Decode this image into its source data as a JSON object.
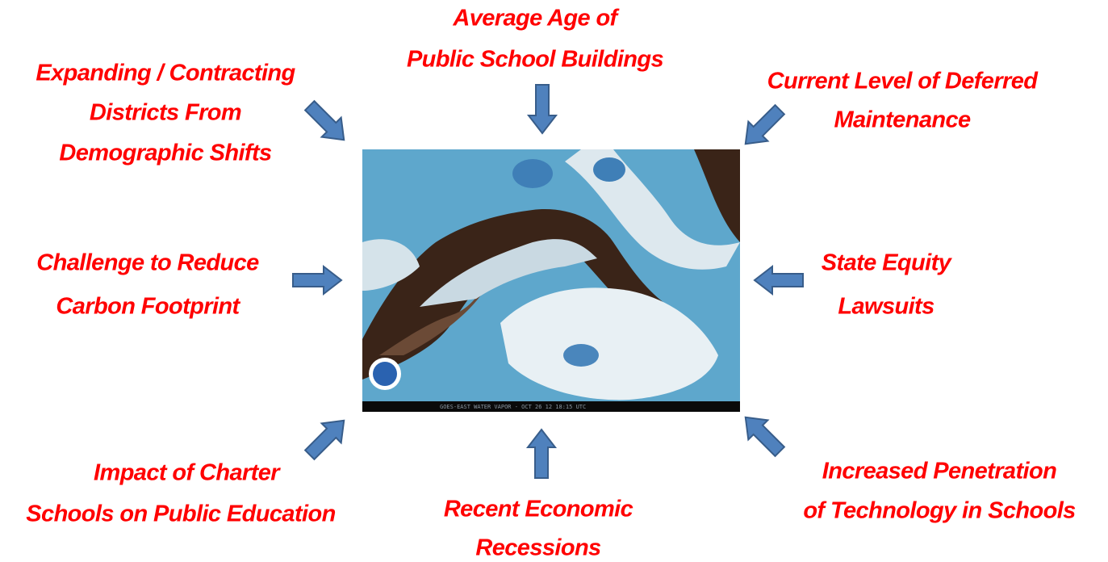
{
  "labels": [
    {
      "lines": [
        "Average Age of",
        "Public School Buildings"
      ]
    },
    {
      "lines": [
        "Expanding / Contracting",
        "Districts From",
        "Demographic Shifts"
      ]
    },
    {
      "lines": [
        "Current Level of Deferred",
        "Maintenance"
      ]
    },
    {
      "lines": [
        "Challenge to Reduce",
        "Carbon Footprint"
      ]
    },
    {
      "lines": [
        "State Equity",
        "Lawsuits"
      ]
    },
    {
      "lines": [
        "Impact of Charter",
        "Schools on Public Education"
      ]
    },
    {
      "lines": [
        "Recent Economic",
        "Recessions"
      ]
    },
    {
      "lines": [
        "Increased Penetration",
        "of Technology in Schools"
      ]
    }
  ],
  "image": {
    "caption": "GOES-EAST WATER VAPOR - OCT 26 12 18:15 UTC"
  }
}
